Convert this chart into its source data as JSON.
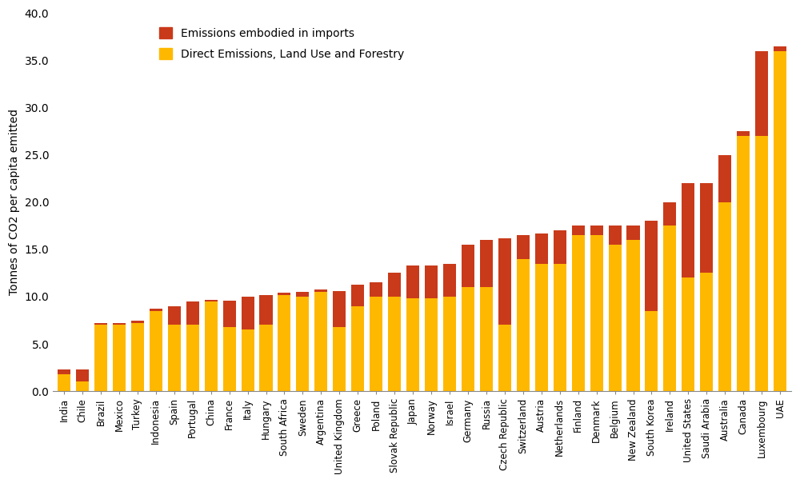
{
  "countries": [
    "India",
    "Chile",
    "Brazil",
    "Mexico",
    "Turkey",
    "Indonesia",
    "Spain",
    "Portugal",
    "China",
    "France",
    "Italy",
    "Hungary",
    "South Africa",
    "Sweden",
    "Argentina",
    "United Kingdom",
    "Greece",
    "Poland",
    "Slovak Republic",
    "Japan",
    "Norway",
    "Israel",
    "Germany",
    "Russia",
    "Czech Republic",
    "Switzerland",
    "Austria",
    "Netherlands",
    "Finland",
    "Denmark",
    "Belgium",
    "New Zealand",
    "South Korea",
    "Ireland",
    "United States",
    "Saudi Arabia",
    "Australia",
    "Canada",
    "Luxembourg",
    "UAE"
  ],
  "direct_vals": [
    1.8,
    1.0,
    7.0,
    7.0,
    7.2,
    8.5,
    7.0,
    7.0,
    9.5,
    6.8,
    6.5,
    7.0,
    10.2,
    10.0,
    10.5,
    6.8,
    9.0,
    10.0,
    10.0,
    9.8,
    9.8,
    10.0,
    11.0,
    11.0,
    7.0,
    14.0,
    13.5,
    13.5,
    16.5,
    16.5,
    15.5,
    16.0,
    8.5,
    17.5,
    12.0,
    12.5,
    20.0,
    27.0,
    27.0,
    36.0
  ],
  "imports_vals": [
    0.5,
    1.3,
    0.2,
    0.2,
    0.3,
    0.2,
    2.0,
    2.5,
    0.2,
    2.8,
    3.5,
    3.2,
    0.2,
    0.5,
    0.3,
    3.8,
    2.3,
    1.5,
    2.5,
    3.5,
    3.5,
    3.5,
    4.5,
    5.0,
    9.2,
    2.5,
    3.2,
    3.5,
    1.0,
    1.0,
    2.0,
    1.5,
    9.5,
    2.5,
    10.0,
    9.5,
    5.0,
    0.5,
    9.0,
    0.5
  ],
  "direct_color": "#FFB800",
  "imports_color": "#C93A1A",
  "ylabel": "Tonnes of CO2 per capita emitted",
  "ylim": [
    0,
    40.0
  ],
  "yticks": [
    0.0,
    5.0,
    10.0,
    15.0,
    20.0,
    25.0,
    30.0,
    35.0,
    40.0
  ],
  "legend_imports": "Emissions embodied in imports",
  "legend_direct": "Direct Emissions, Land Use and Forestry",
  "background_color": "#ffffff"
}
